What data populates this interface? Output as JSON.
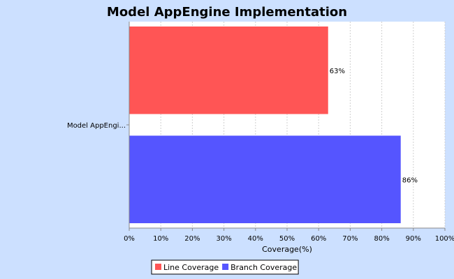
{
  "chart_data": {
    "type": "bar",
    "orientation": "horizontal",
    "title": "Model AppEngine Implementation",
    "categories": [
      "Model AppEngi..."
    ],
    "series": [
      {
        "name": "Line Coverage",
        "values": [
          63
        ],
        "color": "#ff5555"
      },
      {
        "name": "Branch Coverage",
        "values": [
          86
        ],
        "color": "#5555ff"
      }
    ],
    "data_labels": [
      "63%",
      "86%"
    ],
    "xlabel": "Coverage(%)",
    "ylabel": "",
    "xlim": [
      0,
      100
    ],
    "x_ticks": [
      "0%",
      "10%",
      "20%",
      "30%",
      "40%",
      "50%",
      "60%",
      "70%",
      "80%",
      "90%",
      "100%"
    ],
    "grid": true,
    "legend_position": "bottom"
  },
  "colors": {
    "background": "#cce0ff",
    "plot_background": "#ffffff",
    "gridline": "#d0d0d0"
  }
}
